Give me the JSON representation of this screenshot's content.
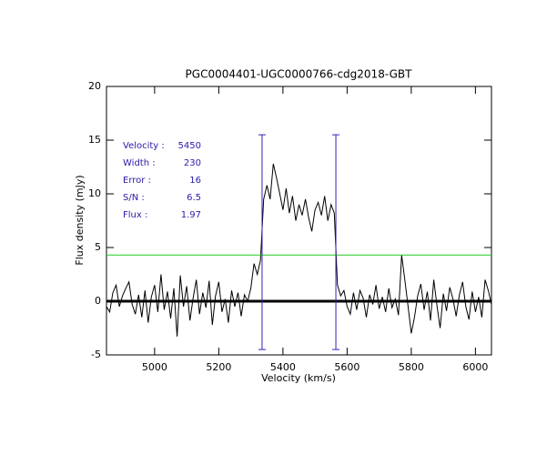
{
  "chart_data": {
    "type": "line",
    "title": "PGC0004401-UGC0000766-cdg2018-GBT",
    "xlabel": "Velocity (km/s)",
    "ylabel": "Flux density (mJy)",
    "color": "#000000",
    "x": [
      4850,
      4860,
      4870,
      4880,
      4890,
      4900,
      4910,
      4920,
      4930,
      4940,
      4950,
      4960,
      4970,
      4980,
      4990,
      5000,
      5010,
      5020,
      5030,
      5040,
      5050,
      5060,
      5070,
      5080,
      5090,
      5100,
      5110,
      5120,
      5130,
      5140,
      5150,
      5160,
      5170,
      5180,
      5190,
      5200,
      5210,
      5220,
      5230,
      5240,
      5250,
      5260,
      5270,
      5280,
      5290,
      5300,
      5310,
      5320,
      5330,
      5340,
      5350,
      5360,
      5370,
      5380,
      5390,
      5400,
      5410,
      5420,
      5430,
      5440,
      5450,
      5460,
      5470,
      5480,
      5490,
      5500,
      5510,
      5520,
      5530,
      5540,
      5550,
      5560,
      5570,
      5580,
      5590,
      5600,
      5610,
      5620,
      5630,
      5640,
      5650,
      5660,
      5670,
      5680,
      5690,
      5700,
      5710,
      5720,
      5730,
      5740,
      5750,
      5760,
      5770,
      5780,
      5790,
      5800,
      5810,
      5820,
      5830,
      5840,
      5850,
      5860,
      5870,
      5880,
      5890,
      5900,
      5910,
      5920,
      5930,
      5940,
      5950,
      5960,
      5970,
      5980,
      5990,
      6000,
      6010,
      6020,
      6030,
      6040,
      6050
    ],
    "values": [
      -0.5,
      -1,
      0.8,
      1.5,
      -0.5,
      0.5,
      1.2,
      1.8,
      -0.3,
      -1.2,
      0.6,
      -1.5,
      1.0,
      -2.0,
      0.4,
      1.5,
      -1.0,
      2.5,
      -0.8,
      0.9,
      -1.6,
      1.2,
      -3.3,
      2.4,
      -0.5,
      1.4,
      -1.8,
      0.3,
      2.0,
      -1.2,
      0.8,
      -0.6,
      1.9,
      -2.2,
      0.5,
      1.8,
      -1.0,
      0.2,
      -2.0,
      1.0,
      -0.5,
      0.8,
      -1.4,
      0.6,
      0.0,
      1.2,
      3.5,
      2.5,
      3.8,
      9.5,
      10.8,
      9.5,
      12.8,
      11.5,
      10.0,
      8.5,
      10.5,
      8.2,
      9.8,
      7.5,
      9.0,
      8.0,
      9.5,
      7.8,
      6.5,
      8.5,
      9.2,
      8.0,
      9.8,
      7.5,
      9.0,
      8.2,
      1.5,
      0.5,
      1.0,
      -0.5,
      -1.2,
      0.8,
      -0.8,
      1.0,
      0.3,
      -1.5,
      0.6,
      -0.3,
      1.5,
      -0.7,
      0.4,
      -1.0,
      1.2,
      -0.6,
      0.2,
      -1.3,
      4.3,
      2.0,
      -0.5,
      -3.0,
      -1.5,
      0.5,
      1.6,
      -0.8,
      0.9,
      -1.8,
      2.0,
      -0.4,
      -2.5,
      0.7,
      -0.9,
      1.3,
      0.2,
      -1.4,
      0.6,
      1.8,
      -0.5,
      -1.7,
      0.9,
      -1.0,
      0.4,
      -1.5,
      2.0,
      1.0,
      -0.3
    ],
    "xlim": [
      4850,
      6050
    ],
    "ylim": [
      -5,
      20
    ],
    "xticks": [
      5000,
      5200,
      5400,
      5600,
      5800,
      6000
    ],
    "yticks": [
      -5,
      0,
      5,
      10,
      15,
      20
    ],
    "baseline": {
      "value": 0,
      "color": "#000000"
    },
    "threshold": {
      "value": 4.3,
      "color": "#22cc22"
    },
    "markers": {
      "x": [
        5335,
        5565
      ],
      "ymin": -4.5,
      "ymax": 15.5,
      "color": "#3c1fb4"
    },
    "annotations": [
      {
        "label": "Velocity :",
        "value": 5450
      },
      {
        "label": "Width :",
        "value": 230
      },
      {
        "label": "Error :",
        "value": 16
      },
      {
        "label": "S/N :",
        "value": 6.5
      },
      {
        "label": "Flux :",
        "value": 1.97
      }
    ]
  }
}
